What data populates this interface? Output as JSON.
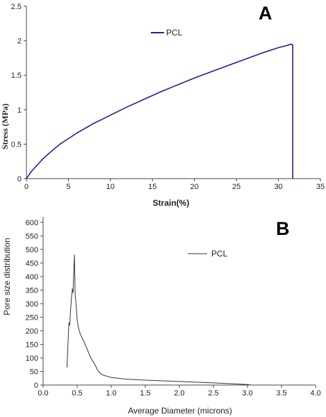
{
  "chart_data": [
    {
      "type": "line",
      "panel_label": "A",
      "xlabel": "Strain(%)",
      "ylabel": "Stress (MPa)",
      "xlim": [
        0,
        35
      ],
      "ylim": [
        0,
        2.5
      ],
      "xticks": [
        "0",
        "5",
        "10",
        "15",
        "20",
        "25",
        "30",
        "35"
      ],
      "yticks": [
        "0",
        "0.5",
        "1",
        "1.5",
        "2",
        "2.5"
      ],
      "legend_position": "top-center",
      "grid": false,
      "color": "#1f1f8f",
      "series": [
        {
          "name": "PCL",
          "x": [
            0,
            0.5,
            1,
            2,
            3,
            4,
            5,
            6,
            7,
            8,
            9,
            10,
            12,
            14,
            16,
            18,
            20,
            22,
            24,
            26,
            28,
            30,
            31,
            31.5,
            31.7,
            31.7
          ],
          "y": [
            0,
            0.09,
            0.16,
            0.29,
            0.4,
            0.5,
            0.58,
            0.66,
            0.73,
            0.8,
            0.86,
            0.92,
            1.04,
            1.15,
            1.26,
            1.36,
            1.46,
            1.55,
            1.64,
            1.73,
            1.82,
            1.9,
            1.93,
            1.95,
            1.94,
            0
          ]
        }
      ]
    },
    {
      "type": "line",
      "panel_label": "B",
      "xlabel": "Average Diameter (microns)",
      "ylabel": "Pore size distribution",
      "xlim": [
        0,
        4.0
      ],
      "ylim": [
        0,
        620
      ],
      "xticks": [
        "0.0",
        "0.5",
        "1.0",
        "1.5",
        "2.0",
        "2.5",
        "3.0",
        "3.5",
        "4.0"
      ],
      "yticks": [
        "0",
        "50",
        "100",
        "150",
        "200",
        "250",
        "300",
        "350",
        "400",
        "450",
        "500",
        "550",
        "600"
      ],
      "legend_position": "top-center",
      "grid": false,
      "color": "#333333",
      "series": [
        {
          "name": "PCL",
          "x": [
            0.35,
            0.37,
            0.38,
            0.39,
            0.4,
            0.41,
            0.42,
            0.43,
            0.44,
            0.45,
            0.46,
            0.47,
            0.48,
            0.49,
            0.5,
            0.52,
            0.55,
            0.6,
            0.65,
            0.7,
            0.75,
            0.8,
            0.85,
            0.9,
            1.0,
            1.2,
            1.5,
            2.0,
            2.5,
            3.0,
            3.05
          ],
          "y": [
            65,
            180,
            230,
            220,
            260,
            300,
            330,
            355,
            340,
            420,
            480,
            330,
            310,
            280,
            240,
            210,
            185,
            160,
            130,
            100,
            80,
            55,
            40,
            35,
            28,
            22,
            18,
            13,
            8,
            2,
            0
          ]
        }
      ]
    }
  ]
}
